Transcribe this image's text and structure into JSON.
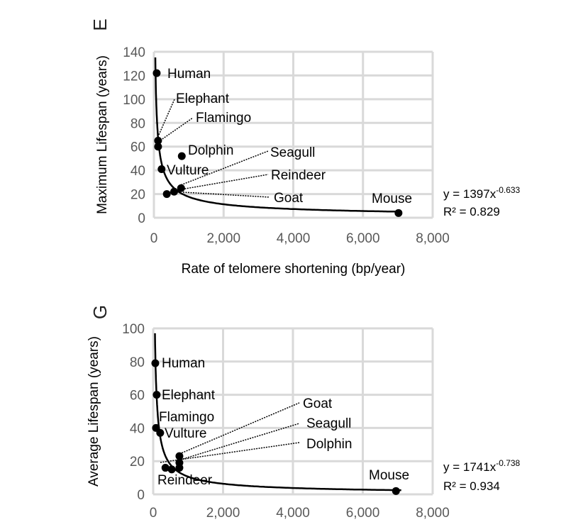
{
  "chart_data": [
    {
      "type": "scatter",
      "panel_label": "E",
      "xlabel": "Rate of telomere shortening (bp/year)",
      "ylabel": "Maximum Lifespan (years)",
      "xlim": [
        0,
        8000
      ],
      "ylim": [
        0,
        140
      ],
      "xticks": [
        "0",
        "2,000",
        "4,000",
        "6,000",
        "8,000"
      ],
      "yticks": [
        "0",
        "20",
        "40",
        "60",
        "80",
        "100",
        "120",
        "140"
      ],
      "grid": true,
      "points": [
        {
          "label": "Human",
          "x": 80,
          "y": 122
        },
        {
          "label": "Elephant",
          "x": 120,
          "y": 65
        },
        {
          "label": "Flamingo",
          "x": 120,
          "y": 60
        },
        {
          "label": "Dolphin",
          "x": 800,
          "y": 52
        },
        {
          "label": "Vulture",
          "x": 220,
          "y": 41
        },
        {
          "label": "Seagull",
          "x": 780,
          "y": 25
        },
        {
          "label": "Reindeer",
          "x": 580,
          "y": 22
        },
        {
          "label": "Goat",
          "x": 370,
          "y": 20
        },
        {
          "label": "Mouse",
          "x": 7020,
          "y": 4
        }
      ],
      "trendline": {
        "type": "power",
        "a": 1397,
        "b": -0.633
      },
      "equation": {
        "base": "y = 1397x",
        "exponent": "-0.633",
        "r2": "R² = 0.829"
      }
    },
    {
      "type": "scatter",
      "panel_label": "G",
      "xlabel": "",
      "ylabel": "Average Lifespan (years)",
      "xlim": [
        0,
        8000
      ],
      "ylim": [
        0,
        100
      ],
      "xticks": [
        "0",
        "2,000",
        "4,000",
        "6,000",
        "8,000"
      ],
      "yticks": [
        "0",
        "20",
        "40",
        "60",
        "80",
        "100"
      ],
      "grid": true,
      "points": [
        {
          "label": "Human",
          "x": 60,
          "y": 79
        },
        {
          "label": "Elephant",
          "x": 100,
          "y": 60
        },
        {
          "label": "Flamingo",
          "x": 80,
          "y": 40
        },
        {
          "label": "Vulture",
          "x": 200,
          "y": 37
        },
        {
          "label": "Goat",
          "x": 750,
          "y": 23
        },
        {
          "label": "Seagull",
          "x": 750,
          "y": 19
        },
        {
          "label": "Dolphin",
          "x": 750,
          "y": 16
        },
        {
          "label": "Reindeer",
          "x": 350,
          "y": 16
        },
        {
          "label": "Mouse",
          "x": 6950,
          "y": 2
        }
      ],
      "extra_points": [
        {
          "x": 530,
          "y": 15
        }
      ],
      "trendline": {
        "type": "power",
        "a": 1741,
        "b": -0.738
      },
      "equation": {
        "base": "y = 1741x",
        "exponent": "-0.738",
        "r2": "R² = 0.934"
      }
    }
  ]
}
